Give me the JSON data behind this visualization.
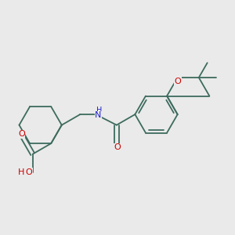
{
  "bg_color": "#eaeaea",
  "bond_color": "#3d6b5e",
  "atom_colors": {
    "O": "#cc0000",
    "N": "#2222cc",
    "H": "#3d6b5e",
    "C": "#3d6b5e"
  },
  "font_size": 8,
  "line_width": 1.3
}
